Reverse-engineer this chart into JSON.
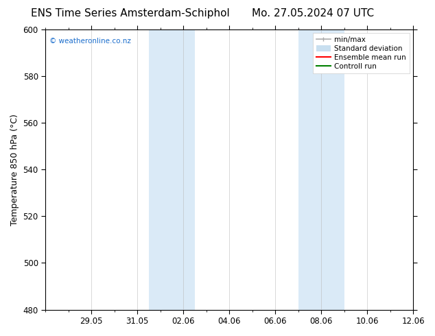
{
  "title_left": "ENS Time Series Amsterdam-Schiphol",
  "title_right": "Mo. 27.05.2024 07 UTC",
  "ylabel": "Temperature 850 hPa (°C)",
  "ylim": [
    480,
    600
  ],
  "yticks": [
    480,
    500,
    520,
    540,
    560,
    580,
    600
  ],
  "xlim": [
    0,
    16
  ],
  "xtick_labels": [
    "29.05",
    "31.05",
    "02.06",
    "04.06",
    "06.06",
    "08.06",
    "10.06",
    "12.06"
  ],
  "xtick_positions": [
    2,
    4,
    6,
    8,
    10,
    12,
    14,
    16
  ],
  "shaded_regions": [
    {
      "start": 4.5,
      "end": 6.5
    },
    {
      "start": 11.0,
      "end": 13.0
    }
  ],
  "shaded_color": "#daeaf7",
  "background_color": "#ffffff",
  "plot_bg_color": "#ffffff",
  "border_color": "#000000",
  "watermark_text": "© weatheronline.co.nz",
  "watermark_color": "#1a6dcc",
  "legend_items": [
    {
      "label": "min/max",
      "color": "#aaaaaa",
      "lw": 1.2,
      "ls": "-"
    },
    {
      "label": "Standard deviation",
      "color": "#c8dff0",
      "lw": 7,
      "ls": "-"
    },
    {
      "label": "Ensemble mean run",
      "color": "#ff0000",
      "lw": 1.5,
      "ls": "-"
    },
    {
      "label": "Controll run",
      "color": "#008000",
      "lw": 1.5,
      "ls": "-"
    }
  ],
  "title_fontsize": 11,
  "tick_label_fontsize": 8.5,
  "ylabel_fontsize": 9,
  "legend_fontsize": 7.5,
  "watermark_fontsize": 7.5
}
